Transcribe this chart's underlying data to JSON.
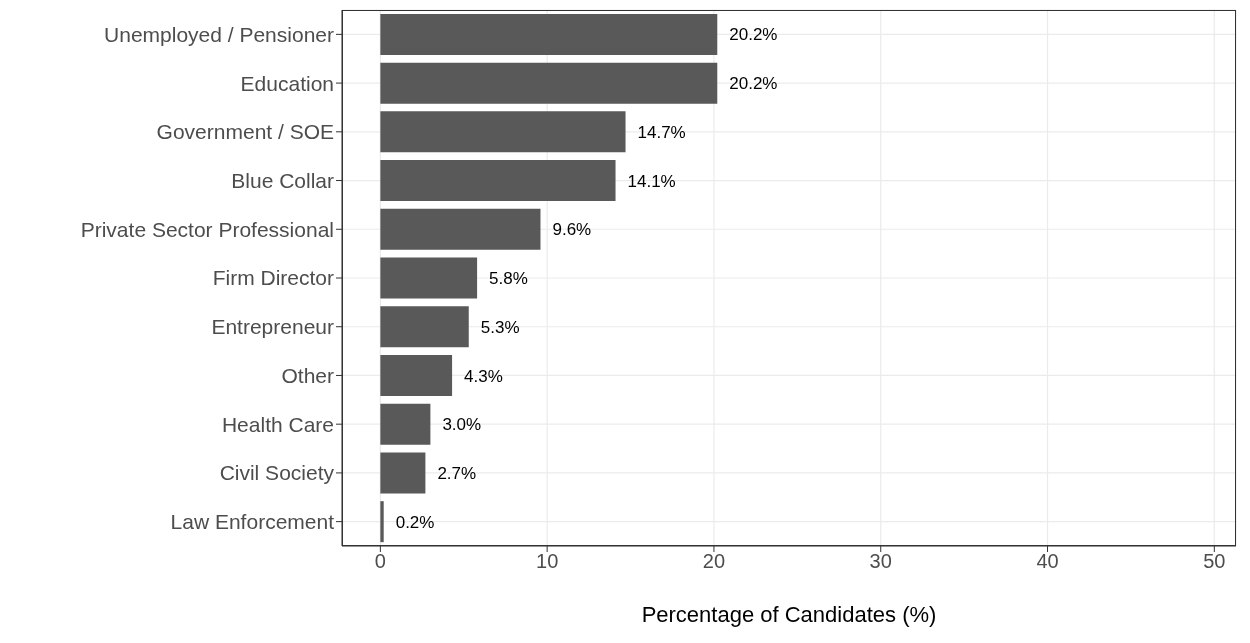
{
  "chart_data": {
    "type": "bar",
    "orientation": "horizontal",
    "xlabel": "Percentage of Candidates (%)",
    "categories": [
      "Unemployed / Pensioner",
      "Education",
      "Government / SOE",
      "Blue Collar",
      "Private Sector Professional",
      "Firm Director",
      "Entrepreneur",
      "Other",
      "Health Care",
      "Civil Society",
      "Law Enforcement"
    ],
    "values": [
      20.2,
      20.2,
      14.7,
      14.1,
      9.6,
      5.8,
      5.3,
      4.3,
      3.0,
      2.7,
      0.2
    ],
    "value_labels": [
      "20.2%",
      "20.2%",
      "14.7%",
      "14.1%",
      "9.6%",
      "5.8%",
      "5.3%",
      "4.3%",
      "3.0%",
      "2.7%",
      "0.2%"
    ],
    "color": "#595959",
    "xlim": [
      -2.3,
      51.3
    ],
    "xticks": [
      0,
      10,
      20,
      30,
      40,
      50
    ],
    "grid": true
  }
}
